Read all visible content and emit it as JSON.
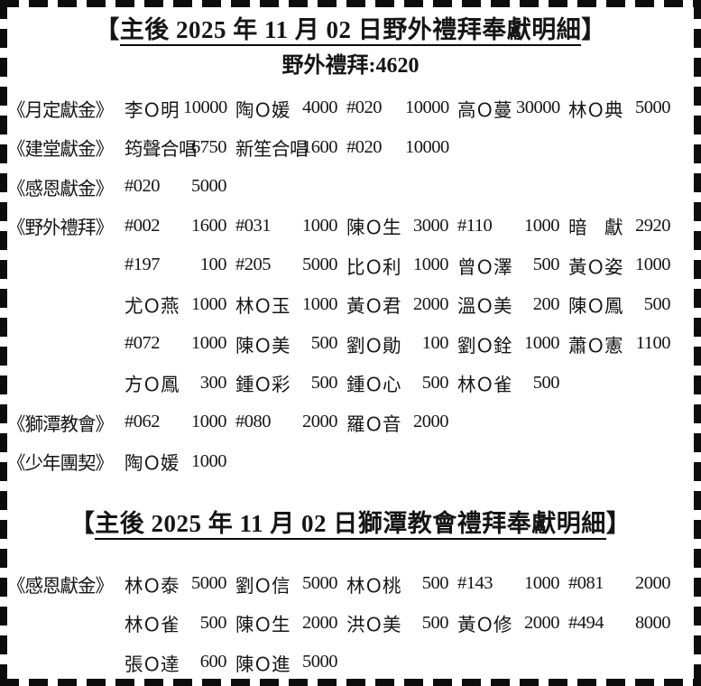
{
  "page": {
    "background": "#ffffff",
    "border_color": "#0d0d0d",
    "text_color": "#151515"
  },
  "sections": [
    {
      "title_open": "【",
      "title_text": "主後 2025 年 11 月 02 日野外禮拜奉獻明細",
      "title_close": "】",
      "subtitle": "野外禮拜:4620",
      "rows": [
        {
          "label": "《月定獻金》",
          "entries": [
            {
              "name": "李Ｏ明",
              "amount": "10000"
            },
            {
              "name": "陶Ｏ媛",
              "amount": "4000"
            },
            {
              "name": "#020",
              "amount": "10000"
            },
            {
              "name": "高Ｏ蔓",
              "amount": "30000"
            },
            {
              "name": "林Ｏ典",
              "amount": "5000"
            }
          ]
        },
        {
          "label": "《建堂獻金》",
          "entries": [
            {
              "name": "筠聲合唱",
              "amount": "6750"
            },
            {
              "name": "新笙合唱",
              "amount": "1600"
            },
            {
              "name": "#020",
              "amount": "10000"
            }
          ]
        },
        {
          "label": "《感恩獻金》",
          "entries": [
            {
              "name": "#020",
              "amount": "5000"
            }
          ]
        },
        {
          "label": "《野外禮拜》",
          "entries": [
            {
              "name": "#002",
              "amount": "1600"
            },
            {
              "name": "#031",
              "amount": "1000"
            },
            {
              "name": "陳Ｏ生",
              "amount": "3000"
            },
            {
              "name": "#110",
              "amount": "1000"
            },
            {
              "name": "暗　獻",
              "amount": "2920"
            }
          ]
        },
        {
          "label": "",
          "entries": [
            {
              "name": "#197",
              "amount": "100"
            },
            {
              "name": "#205",
              "amount": "5000"
            },
            {
              "name": "比Ｏ利",
              "amount": "1000"
            },
            {
              "name": "曾Ｏ澤",
              "amount": "500"
            },
            {
              "name": "黃Ｏ姿",
              "amount": "1000"
            }
          ]
        },
        {
          "label": "",
          "entries": [
            {
              "name": "尤Ｏ燕",
              "amount": "1000"
            },
            {
              "name": "林Ｏ玉",
              "amount": "1000"
            },
            {
              "name": "黃Ｏ君",
              "amount": "2000"
            },
            {
              "name": "溫Ｏ美",
              "amount": "200"
            },
            {
              "name": "陳Ｏ鳳",
              "amount": "500"
            }
          ]
        },
        {
          "label": "",
          "entries": [
            {
              "name": "#072",
              "amount": "1000"
            },
            {
              "name": "陳Ｏ美",
              "amount": "500"
            },
            {
              "name": "劉Ｏ勛",
              "amount": "100"
            },
            {
              "name": "劉Ｏ銓",
              "amount": "1000"
            },
            {
              "name": "蕭Ｏ憲",
              "amount": "1100"
            }
          ]
        },
        {
          "label": "",
          "entries": [
            {
              "name": "方Ｏ鳳",
              "amount": "300"
            },
            {
              "name": "鍾Ｏ彩",
              "amount": "500"
            },
            {
              "name": "鍾Ｏ心",
              "amount": "500"
            },
            {
              "name": "林Ｏ雀",
              "amount": "500"
            }
          ]
        },
        {
          "label": "《獅潭教會》",
          "entries": [
            {
              "name": "#062",
              "amount": "1000"
            },
            {
              "name": "#080",
              "amount": "2000"
            },
            {
              "name": "羅Ｏ音",
              "amount": "2000"
            }
          ]
        },
        {
          "label": "《少年團契》",
          "entries": [
            {
              "name": "陶Ｏ媛",
              "amount": "1000"
            }
          ]
        }
      ]
    },
    {
      "title_open": "【",
      "title_text": "主後 2025 年 11 月 02 日獅潭教會禮拜奉獻明細",
      "title_close": "】",
      "rows": [
        {
          "label": "《感恩獻金》",
          "entries": [
            {
              "name": "林Ｏ泰",
              "amount": "5000"
            },
            {
              "name": "劉Ｏ信",
              "amount": "5000"
            },
            {
              "name": "林Ｏ桃",
              "amount": "500"
            },
            {
              "name": "#143",
              "amount": "1000"
            },
            {
              "name": "#081",
              "amount": "2000"
            }
          ]
        },
        {
          "label": "",
          "entries": [
            {
              "name": "林Ｏ雀",
              "amount": "500"
            },
            {
              "name": "陳Ｏ生",
              "amount": "2000"
            },
            {
              "name": "洪Ｏ美",
              "amount": "500"
            },
            {
              "name": "黃Ｏ修",
              "amount": "2000"
            },
            {
              "name": "#494",
              "amount": "8000"
            }
          ]
        },
        {
          "label": "",
          "entries": [
            {
              "name": "張Ｏ達",
              "amount": "600"
            },
            {
              "name": "陳Ｏ進",
              "amount": "5000"
            }
          ]
        }
      ]
    }
  ]
}
